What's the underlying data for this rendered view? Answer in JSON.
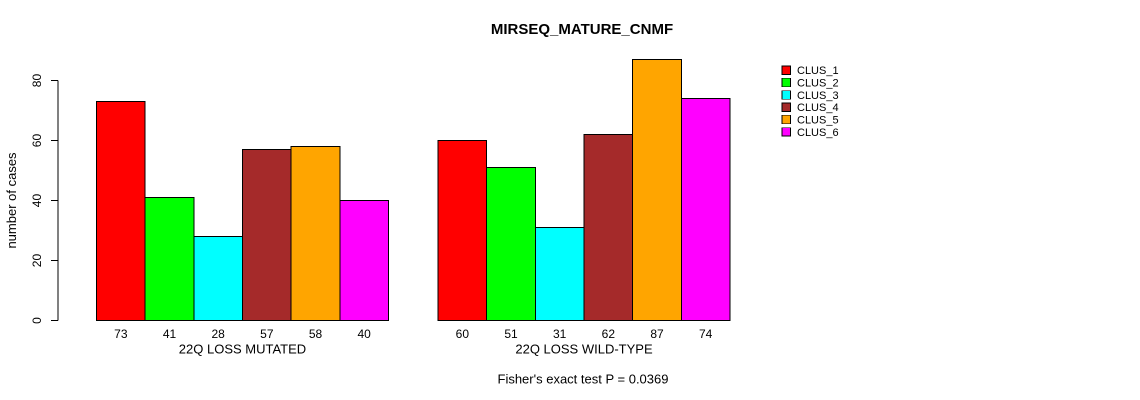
{
  "figure": {
    "background": "#ffffff",
    "text_color": "#000000"
  },
  "chart_data": {
    "type": "bar",
    "title": "MIRSEQ_MATURE_CNMF",
    "ylabel": "number of cases",
    "xlabel": "",
    "annotation": "Fisher's exact test P = 0.0369",
    "categories": [
      "22Q LOSS MUTATED",
      "22Q LOSS WILD-TYPE"
    ],
    "series": [
      {
        "name": "CLUS_1",
        "color": "#FF0000",
        "values": [
          73,
          60
        ]
      },
      {
        "name": "CLUS_2",
        "color": "#00FF00",
        "values": [
          41,
          51
        ]
      },
      {
        "name": "CLUS_3",
        "color": "#00FFFF",
        "values": [
          28,
          31
        ]
      },
      {
        "name": "CLUS_4",
        "color": "#A52A2A",
        "values": [
          57,
          62
        ]
      },
      {
        "name": "CLUS_5",
        "color": "#FFA500",
        "values": [
          58,
          87
        ]
      },
      {
        "name": "CLUS_6",
        "color": "#FF00FF",
        "values": [
          40,
          74
        ]
      }
    ],
    "yticks": [
      0,
      20,
      40,
      60,
      80
    ],
    "ylim": [
      0,
      87
    ],
    "grid": false,
    "bar_value_labels": true,
    "bar_border_color": "#000000",
    "legend_position": "right"
  }
}
